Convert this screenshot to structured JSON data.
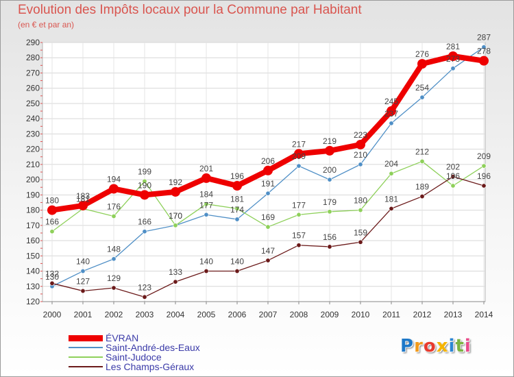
{
  "title": "Evolution des Impôts locaux pour la Commune par Habitant",
  "subtitle": "(en € et par an)",
  "chart_data": {
    "type": "line",
    "title": "Evolution des Impôts locaux pour la Commune par Habitant",
    "subtitle": "(en € et par an)",
    "xlabel": "",
    "ylabel": "",
    "x": [
      2000,
      2001,
      2002,
      2003,
      2004,
      2005,
      2006,
      2007,
      2008,
      2009,
      2010,
      2011,
      2012,
      2013,
      2014
    ],
    "ylim": [
      120,
      290
    ],
    "yticks": [
      120,
      130,
      140,
      150,
      160,
      170,
      180,
      190,
      200,
      210,
      220,
      230,
      240,
      250,
      260,
      270,
      280,
      290
    ],
    "grid": true,
    "legend": "bottom-left",
    "series": [
      {
        "name": "Saint-André-des-Eaux",
        "color": "#4f8fc6",
        "values": [
          130,
          140,
          148,
          166,
          170,
          177,
          174,
          191,
          209,
          200,
          210,
          237,
          254,
          273,
          287
        ]
      },
      {
        "name": "Saint-Judoce",
        "color": "#8ed05a",
        "values": [
          166,
          181,
          176,
          199,
          170,
          184,
          181,
          169,
          177,
          179,
          180,
          204,
          212,
          196,
          209
        ]
      },
      {
        "name": "Les Champs-Géraux",
        "color": "#6b1a1a",
        "values": [
          132,
          127,
          129,
          123,
          133,
          140,
          140,
          147,
          157,
          156,
          159,
          181,
          189,
          202,
          196
        ]
      },
      {
        "name": "ÉVRAN",
        "color": "#ee0000",
        "values": [
          180,
          183,
          194,
          190,
          192,
          201,
          196,
          206,
          217,
          219,
          223,
          245,
          276,
          281,
          278
        ]
      }
    ]
  },
  "logo": {
    "letters": [
      "P",
      "r",
      "o",
      "x",
      "i",
      "t",
      "i"
    ],
    "colors": [
      "#1e78c8",
      "#f29a1b",
      "#e83a2e",
      "#f5b400",
      "#2b86d4",
      "#7ab342",
      "#e94b8a"
    ]
  }
}
